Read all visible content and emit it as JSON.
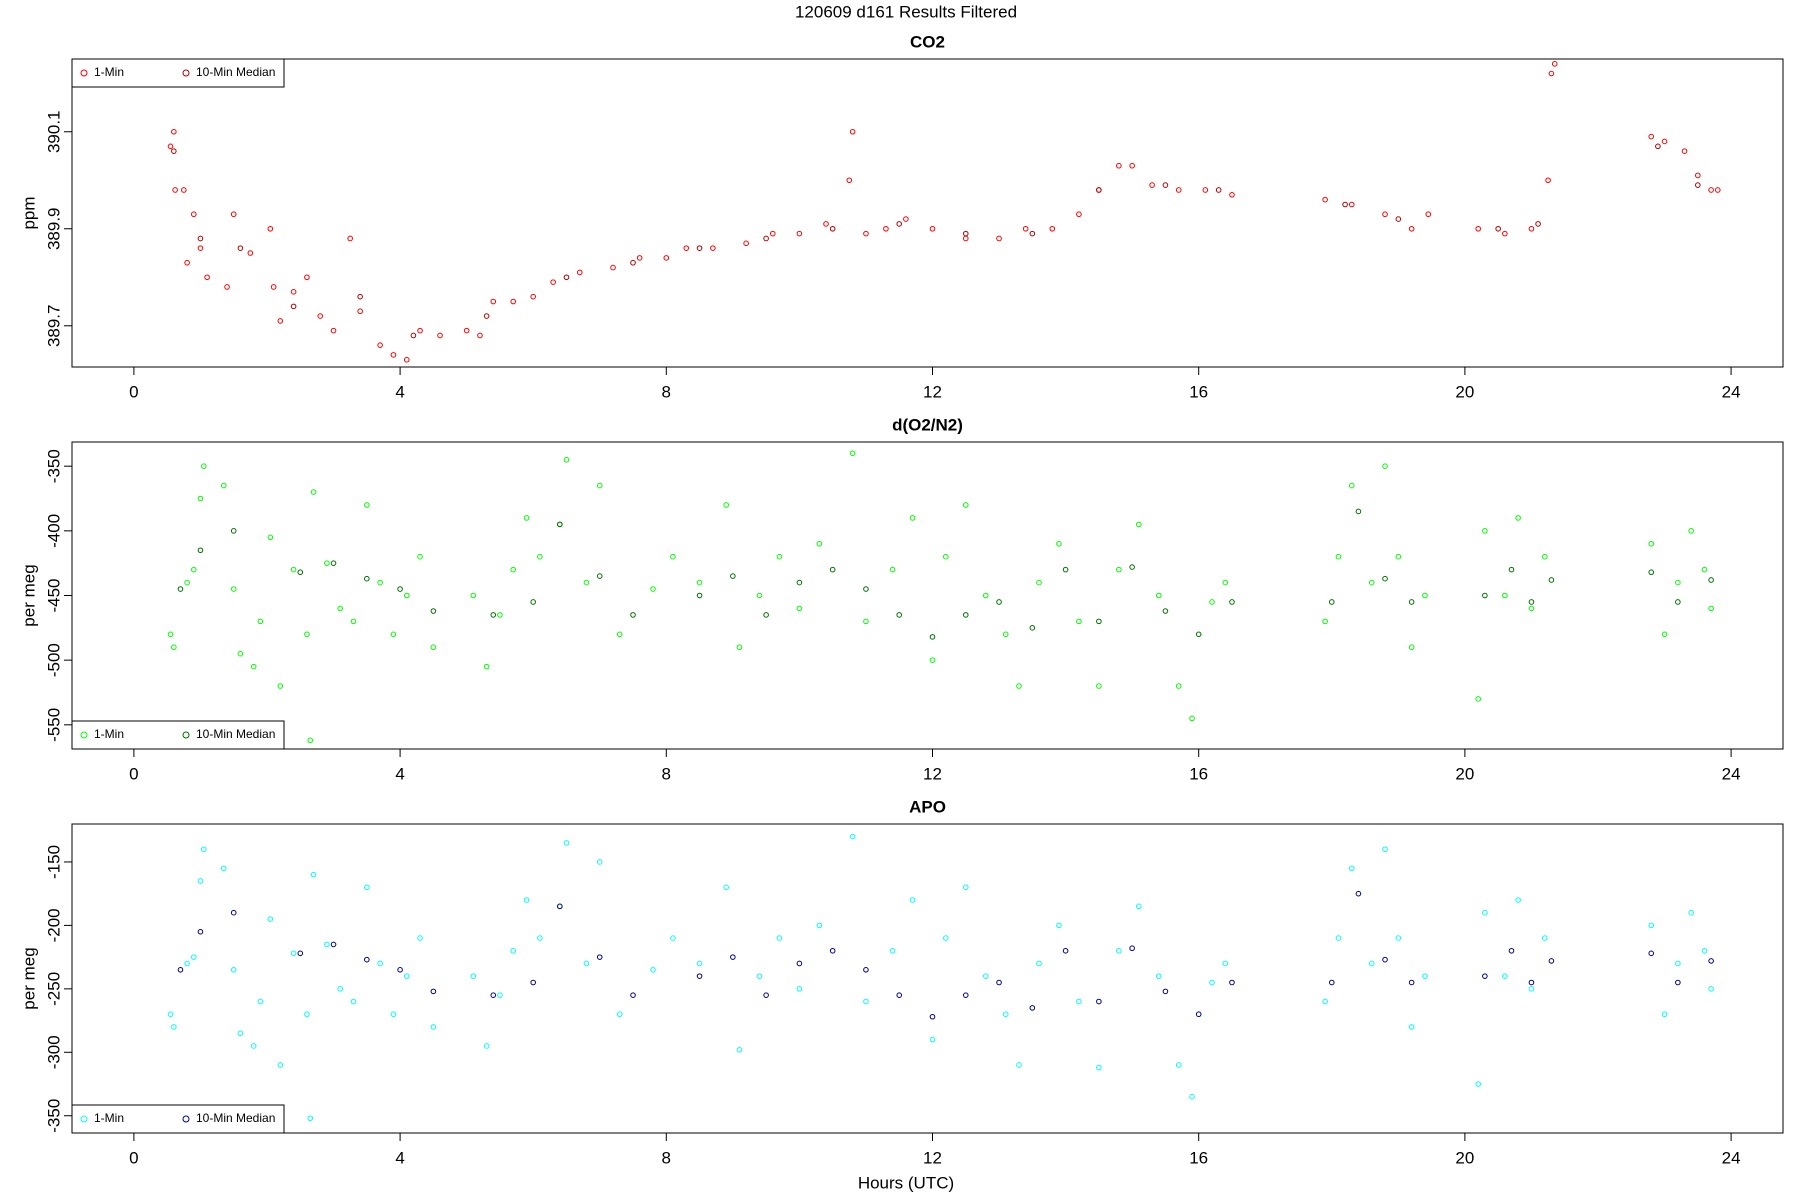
{
  "title": "120609   d161   Results Filtered",
  "xlabel": "Hours (UTC)",
  "chart_data": [
    {
      "type": "scatter",
      "title": "CO2",
      "ylabel": "ppm",
      "legend": "top-left",
      "xlim": [
        -0.93,
        24.78
      ],
      "xticks": [
        0,
        4,
        8,
        12,
        16,
        20,
        24
      ],
      "ylim": [
        389.615,
        390.25
      ],
      "yticks": [
        389.7,
        389.9,
        390.1
      ],
      "series": [
        {
          "name": "1-Min",
          "color": "#ff0000",
          "x": [
            0.55,
            0.6,
            0.62,
            0.75,
            0.8,
            0.9,
            1.0,
            1.1,
            1.4,
            1.5,
            1.75,
            2.05,
            2.1,
            2.2,
            2.4,
            2.6,
            2.8,
            3.0,
            3.25,
            3.4,
            3.7,
            3.9,
            4.1,
            4.3,
            4.6,
            5.0,
            5.2,
            5.4,
            5.7,
            6.0,
            6.3,
            6.7,
            7.2,
            7.6,
            8.0,
            8.3,
            8.7,
            9.2,
            9.6,
            10.0,
            10.4,
            10.75,
            10.8,
            11.0,
            11.3,
            11.6,
            12.0,
            12.5,
            13.0,
            13.4,
            13.8,
            14.2,
            14.5,
            14.8,
            15.0,
            15.3,
            15.7,
            16.1,
            16.5,
            17.9,
            18.3,
            18.8,
            19.2,
            19.45,
            20.2,
            20.6,
            21.0,
            21.25,
            21.3,
            21.35,
            22.8,
            23.0,
            23.3,
            23.5,
            23.7,
            23.8
          ],
          "values": [
            390.07,
            390.1,
            389.98,
            389.98,
            389.83,
            389.93,
            389.86,
            389.8,
            389.78,
            389.93,
            389.85,
            389.9,
            389.78,
            389.71,
            389.77,
            389.8,
            389.72,
            389.69,
            389.88,
            389.73,
            389.66,
            389.64,
            389.63,
            389.69,
            389.68,
            389.69,
            389.68,
            389.75,
            389.75,
            389.76,
            389.79,
            389.81,
            389.82,
            389.84,
            389.84,
            389.86,
            389.86,
            389.87,
            389.89,
            389.89,
            389.91,
            390.0,
            390.1,
            389.89,
            389.9,
            389.92,
            389.9,
            389.88,
            389.88,
            389.9,
            389.9,
            389.93,
            389.98,
            390.03,
            390.03,
            389.99,
            389.98,
            389.98,
            389.97,
            389.96,
            389.95,
            389.93,
            389.9,
            389.93,
            389.9,
            389.89,
            389.9,
            390.0,
            390.22,
            390.24,
            390.09,
            390.08,
            390.06,
            390.01,
            389.98,
            389.98
          ]
        },
        {
          "name": "10-Min Median",
          "color": "#b00000",
          "x": [
            0.6,
            1.0,
            1.6,
            2.4,
            3.4,
            4.2,
            5.3,
            6.5,
            7.5,
            8.5,
            9.5,
            10.5,
            11.5,
            12.5,
            13.5,
            14.5,
            15.5,
            16.3,
            18.2,
            19.0,
            20.5,
            21.1,
            22.9,
            23.5
          ],
          "values": [
            390.06,
            389.88,
            389.86,
            389.74,
            389.76,
            389.68,
            389.72,
            389.8,
            389.83,
            389.86,
            389.88,
            389.9,
            389.91,
            389.89,
            389.89,
            389.98,
            389.99,
            389.98,
            389.95,
            389.92,
            389.9,
            389.91,
            390.07,
            389.99
          ]
        }
      ]
    },
    {
      "type": "scatter",
      "title": "d(O2/N2)",
      "ylabel": "per meg",
      "legend": "bottom-left",
      "xlim": [
        -0.93,
        24.78
      ],
      "xticks": [
        0,
        4,
        8,
        12,
        16,
        20,
        24
      ],
      "ylim": [
        -568.7,
        -331.3
      ],
      "yticks": [
        -550,
        -500,
        -450,
        -400,
        -350
      ],
      "series": [
        {
          "name": "1-Min",
          "color": "#00ff00",
          "x": [
            0.55,
            0.6,
            0.8,
            0.9,
            1.0,
            1.05,
            1.35,
            1.5,
            1.6,
            1.8,
            1.9,
            2.05,
            2.2,
            2.4,
            2.6,
            2.65,
            2.7,
            2.9,
            3.1,
            3.3,
            3.5,
            3.7,
            3.9,
            4.1,
            4.3,
            4.5,
            5.1,
            5.3,
            5.5,
            5.7,
            5.9,
            6.1,
            6.4,
            6.5,
            6.8,
            7.0,
            7.3,
            7.8,
            8.1,
            8.5,
            8.9,
            9.1,
            9.4,
            9.7,
            10.0,
            10.3,
            10.8,
            11.0,
            11.4,
            11.7,
            12.0,
            12.2,
            12.5,
            12.8,
            13.1,
            13.3,
            13.6,
            13.9,
            14.2,
            14.5,
            14.8,
            15.1,
            15.4,
            15.7,
            15.9,
            16.2,
            16.4,
            17.9,
            18.1,
            18.3,
            18.6,
            18.8,
            19.0,
            19.2,
            19.4,
            20.2,
            20.3,
            20.6,
            20.8,
            21.0,
            21.2,
            22.8,
            23.0,
            23.2,
            23.4,
            23.6,
            23.7
          ],
          "values": [
            -480,
            -490,
            -440,
            -430,
            -375,
            -350,
            -365,
            -445,
            -495,
            -505,
            -470,
            -405,
            -520,
            -430,
            -480,
            -562,
            -370,
            -425,
            -460,
            -470,
            -380,
            -440,
            -480,
            -450,
            -420,
            -490,
            -450,
            -505,
            -465,
            -430,
            -390,
            -420,
            -395,
            -345,
            -440,
            -365,
            -480,
            -445,
            -420,
            -440,
            -380,
            -490,
            -450,
            -420,
            -460,
            -410,
            -340,
            -470,
            -430,
            -390,
            -500,
            -420,
            -380,
            -450,
            -480,
            -520,
            -440,
            -410,
            -470,
            -520,
            -430,
            -395,
            -450,
            -520,
            -545,
            -455,
            -440,
            -470,
            -420,
            -365,
            -440,
            -350,
            -420,
            -490,
            -450,
            -530,
            -400,
            -450,
            -390,
            -460,
            -420,
            -410,
            -480,
            -440,
            -400,
            -430,
            -460
          ]
        },
        {
          "name": "10-Min Median",
          "color": "#007000",
          "x": [
            0.7,
            1.0,
            1.5,
            2.5,
            3.0,
            3.5,
            4.0,
            4.5,
            5.4,
            6.0,
            6.4,
            7.0,
            7.5,
            8.5,
            9.0,
            9.5,
            10.0,
            10.5,
            11.0,
            11.5,
            12.0,
            12.5,
            13.0,
            13.5,
            14.0,
            14.5,
            15.0,
            15.5,
            16.0,
            16.5,
            18.0,
            18.4,
            18.8,
            19.2,
            20.3,
            20.7,
            21.0,
            21.3,
            22.8,
            23.2,
            23.7
          ],
          "values": [
            -445,
            -415,
            -400,
            -432,
            -425,
            -437,
            -445,
            -462,
            -465,
            -455,
            -395,
            -435,
            -465,
            -450,
            -435,
            -465,
            -440,
            -430,
            -445,
            -465,
            -482,
            -465,
            -455,
            -475,
            -430,
            -470,
            -428,
            -462,
            -480,
            -455,
            -455,
            -385,
            -437,
            -455,
            -450,
            -430,
            -455,
            -438,
            -432,
            -455,
            -438
          ]
        }
      ]
    },
    {
      "type": "scatter",
      "title": "APO",
      "ylabel": "per meg",
      "legend": "bottom-left",
      "xlim": [
        -0.93,
        24.78
      ],
      "xticks": [
        0,
        4,
        8,
        12,
        16,
        20,
        24
      ],
      "ylim": [
        -363.6,
        -120.1
      ],
      "yticks": [
        -350,
        -300,
        -250,
        -200,
        -150
      ],
      "series": [
        {
          "name": "1-Min",
          "color": "#00ffff",
          "x": [
            0.55,
            0.6,
            0.8,
            0.9,
            1.0,
            1.05,
            1.35,
            1.5,
            1.6,
            1.8,
            1.9,
            2.05,
            2.2,
            2.4,
            2.6,
            2.65,
            2.7,
            2.9,
            3.1,
            3.3,
            3.5,
            3.7,
            3.9,
            4.1,
            4.3,
            4.5,
            5.1,
            5.3,
            5.5,
            5.7,
            5.9,
            6.1,
            6.4,
            6.5,
            6.8,
            7.0,
            7.3,
            7.8,
            8.1,
            8.5,
            8.9,
            9.1,
            9.4,
            9.7,
            10.0,
            10.3,
            10.8,
            11.0,
            11.4,
            11.7,
            12.0,
            12.2,
            12.5,
            12.8,
            13.1,
            13.3,
            13.6,
            13.9,
            14.2,
            14.5,
            14.8,
            15.1,
            15.4,
            15.7,
            15.9,
            16.2,
            16.4,
            17.9,
            18.1,
            18.3,
            18.6,
            18.8,
            19.0,
            19.2,
            19.4,
            20.2,
            20.3,
            20.6,
            20.8,
            21.0,
            21.2,
            22.8,
            23.0,
            23.2,
            23.4,
            23.6,
            23.7
          ],
          "values": [
            -270,
            -280,
            -230,
            -225,
            -165,
            -140,
            -155,
            -235,
            -285,
            -295,
            -260,
            -195,
            -310,
            -222,
            -270,
            -352,
            -160,
            -215,
            -250,
            -260,
            -170,
            -230,
            -270,
            -240,
            -210,
            -280,
            -240,
            -295,
            -255,
            -220,
            -180,
            -210,
            -185,
            -135,
            -230,
            -150,
            -270,
            -235,
            -210,
            -230,
            -170,
            -298,
            -240,
            -210,
            -250,
            -200,
            -130,
            -260,
            -220,
            -180,
            -290,
            -210,
            -170,
            -240,
            -270,
            -310,
            -230,
            -200,
            -260,
            -312,
            -220,
            -185,
            -240,
            -310,
            -335,
            -245,
            -230,
            -260,
            -210,
            -155,
            -230,
            -140,
            -210,
            -280,
            -240,
            -325,
            -190,
            -240,
            -180,
            -250,
            -210,
            -200,
            -270,
            -230,
            -190,
            -220,
            -250
          ]
        },
        {
          "name": "10-Min Median",
          "color": "#00008b",
          "x": [
            0.7,
            1.0,
            1.5,
            2.5,
            3.0,
            3.5,
            4.0,
            4.5,
            5.4,
            6.0,
            6.4,
            7.0,
            7.5,
            8.5,
            9.0,
            9.5,
            10.0,
            10.5,
            11.0,
            11.5,
            12.0,
            12.5,
            13.0,
            13.5,
            14.0,
            14.5,
            15.0,
            15.5,
            16.0,
            16.5,
            18.0,
            18.4,
            18.8,
            19.2,
            20.3,
            20.7,
            21.0,
            21.3,
            22.8,
            23.2,
            23.7
          ],
          "values": [
            -235,
            -205,
            -190,
            -222,
            -215,
            -227,
            -235,
            -252,
            -255,
            -245,
            -185,
            -225,
            -255,
            -240,
            -225,
            -255,
            -230,
            -220,
            -235,
            -255,
            -272,
            -255,
            -245,
            -265,
            -220,
            -260,
            -218,
            -252,
            -270,
            -245,
            -245,
            -175,
            -227,
            -245,
            -240,
            -220,
            -245,
            -228,
            -222,
            -245,
            -228
          ]
        }
      ]
    }
  ]
}
